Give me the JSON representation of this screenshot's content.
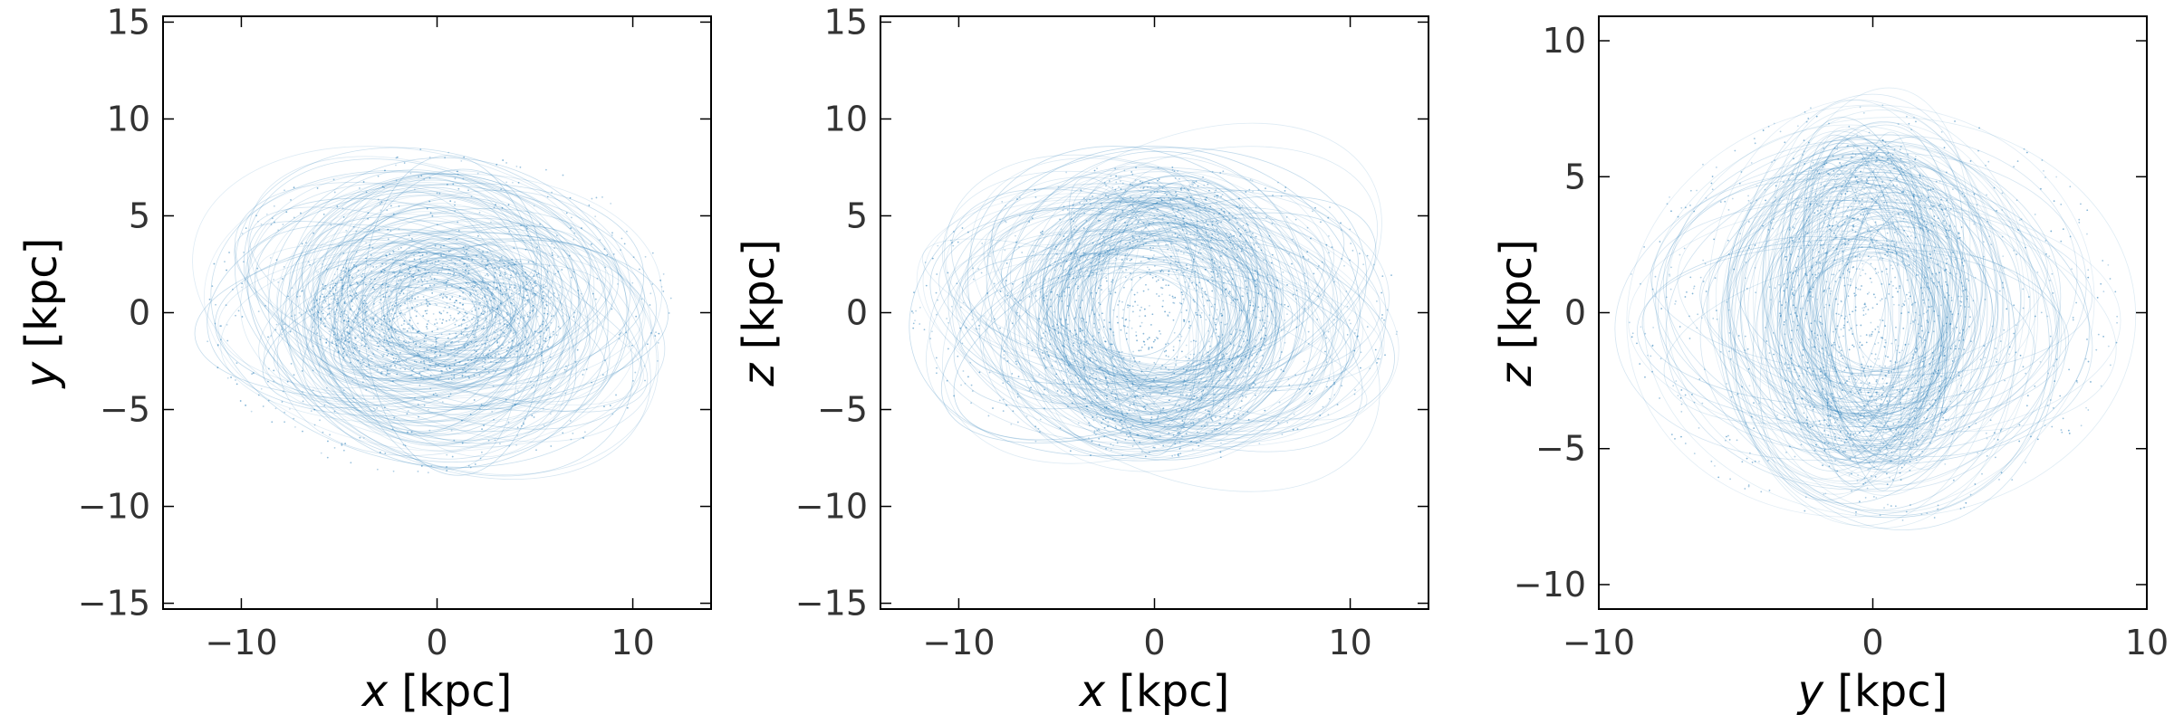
{
  "chart_data": [
    {
      "type": "scatter",
      "xlabel_var": "x",
      "xlabel_unit": " [kpc]",
      "ylabel_var": "y",
      "ylabel_unit": " [kpc]",
      "xlim": [
        -14,
        14
      ],
      "ylim": [
        -15.3,
        15.3
      ],
      "xticks": [
        -10,
        0,
        10
      ],
      "yticks": [
        -15,
        -10,
        -5,
        0,
        5,
        10,
        15
      ],
      "xticklabels": [
        "−10",
        "0",
        "10"
      ],
      "yticklabels": [
        "−15",
        "−10",
        "−5",
        "0",
        "5",
        "10",
        "15"
      ],
      "grid": false,
      "color": "#1f77b4",
      "orbit_cloud": {
        "semi_axis_1": 12,
        "semi_axis_2": 8.5,
        "core_semi_axis_1": 6.5,
        "core_semi_axis_2": 3.5
      }
    },
    {
      "type": "scatter",
      "xlabel_var": "x",
      "xlabel_unit": " [kpc]",
      "ylabel_var": "z",
      "ylabel_unit": " [kpc]",
      "xlim": [
        -14,
        14
      ],
      "ylim": [
        -15.3,
        15.3
      ],
      "xticks": [
        -10,
        0,
        10
      ],
      "yticks": [
        -15,
        -10,
        -5,
        0,
        5,
        10,
        15
      ],
      "xticklabels": [
        "−10",
        "0",
        "10"
      ],
      "yticklabels": [
        "−15",
        "−10",
        "−5",
        "0",
        "5",
        "10",
        "15"
      ],
      "grid": false,
      "color": "#1f77b4",
      "orbit_cloud": {
        "semi_axis_1": 12.5,
        "semi_axis_2": 7.8,
        "core_semi_axis_1": 6,
        "core_semi_axis_2": 7.5
      }
    },
    {
      "type": "scatter",
      "xlabel_var": "y",
      "xlabel_unit": " [kpc]",
      "ylabel_var": "z",
      "ylabel_unit": " [kpc]",
      "xlim": [
        -10,
        10
      ],
      "ylim": [
        -10.9,
        10.9
      ],
      "xticks": [
        -10,
        0,
        10
      ],
      "yticks": [
        -10,
        -5,
        0,
        5,
        10
      ],
      "xticklabels": [
        "−10",
        "0",
        "10"
      ],
      "yticklabels": [
        "−10",
        "−5",
        "0",
        "5",
        "10"
      ],
      "grid": false,
      "color": "#1f77b4",
      "orbit_cloud": {
        "semi_axis_1": 9,
        "semi_axis_2": 7.8,
        "core_semi_axis_1": 3.5,
        "core_semi_axis_2": 6.5
      }
    }
  ]
}
